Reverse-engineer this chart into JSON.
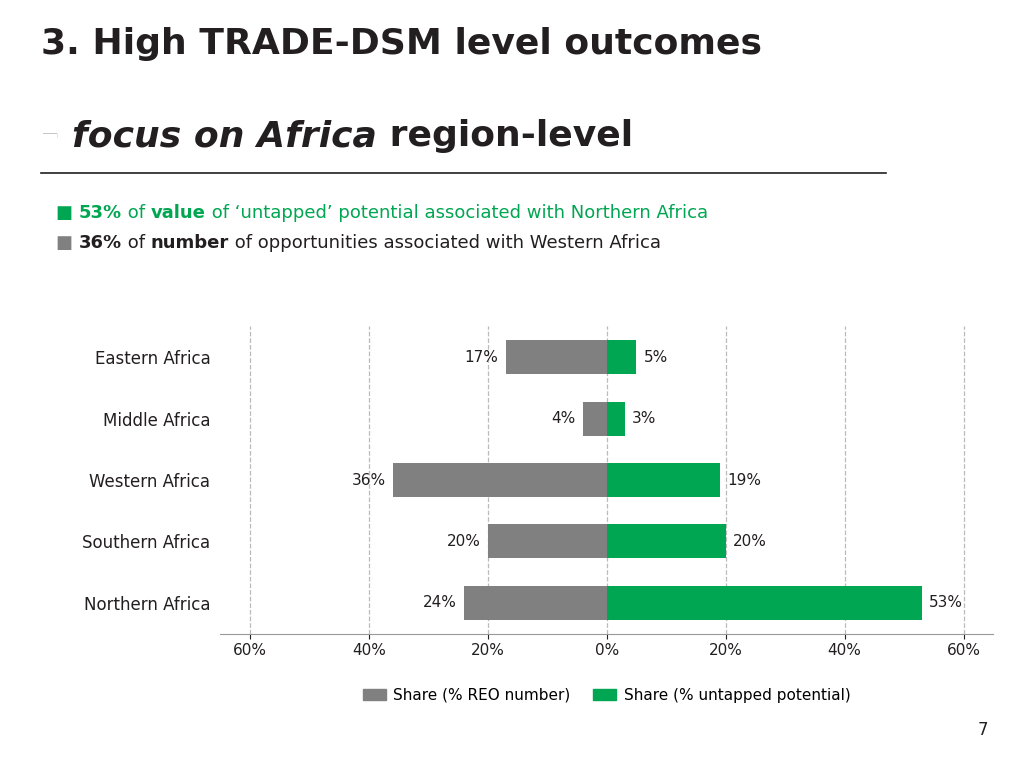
{
  "title_line1": "3. High TRADE-DSM level outcomes",
  "title_line2_dash": "– ",
  "title_line2_italic": "focus on Africa",
  "title_line2_rest": " region-level",
  "bullet1_parts": [
    {
      "text": "■ ",
      "bold": false,
      "color": "#00a651",
      "size": 13
    },
    {
      "text": "53%",
      "bold": true,
      "color": "#00a651",
      "size": 13
    },
    {
      "text": " of ",
      "bold": false,
      "color": "#00a651",
      "size": 13
    },
    {
      "text": "value",
      "bold": true,
      "color": "#00a651",
      "size": 13
    },
    {
      "text": " of ‘untapped’ potential associated with Northern Africa",
      "bold": false,
      "color": "#00a651",
      "size": 13
    }
  ],
  "bullet2_parts": [
    {
      "text": "■ ",
      "bold": false,
      "color": "#808080",
      "size": 13
    },
    {
      "text": "36%",
      "bold": true,
      "color": "#231f20",
      "size": 13
    },
    {
      "text": " of ",
      "bold": false,
      "color": "#231f20",
      "size": 13
    },
    {
      "text": "number",
      "bold": true,
      "color": "#231f20",
      "size": 13
    },
    {
      "text": " of opportunities associated with Western Africa",
      "bold": false,
      "color": "#231f20",
      "size": 13
    }
  ],
  "categories": [
    "Northern Africa",
    "Southern Africa",
    "Western Africa",
    "Middle Africa",
    "Eastern Africa"
  ],
  "reo_number": [
    24,
    20,
    36,
    4,
    17
  ],
  "untapped": [
    53,
    20,
    19,
    3,
    5
  ],
  "reo_color": "#808080",
  "untapped_color": "#00a651",
  "background_color": "#ffffff",
  "xlim": [
    -65,
    65
  ],
  "xticks": [
    -60,
    -40,
    -20,
    0,
    20,
    40,
    60
  ],
  "xtick_labels": [
    "60%",
    "40%",
    "20%",
    "0%",
    "20%",
    "40%",
    "60%"
  ],
  "legend_reo": "Share (% REO number)",
  "legend_untapped": "Share (% untapped potential)",
  "green_text_color": "#00a651",
  "black_text_color": "#231f20",
  "title_fontsize": 26,
  "bar_height": 0.55
}
